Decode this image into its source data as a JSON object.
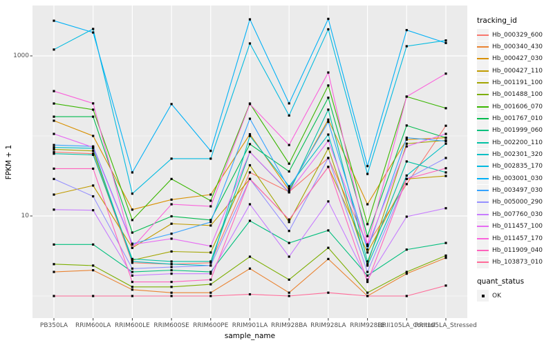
{
  "chart_data": {
    "type": "line",
    "title": "",
    "xlabel": "sample_name",
    "ylabel": "FPKM + 1",
    "y_scale": "log10",
    "y_ticks": [
      1000,
      10
    ],
    "y_minor_gridlines": [
      100,
      1
    ],
    "ylim": [
      0.55,
      4200
    ],
    "grid": true,
    "legend_position": "right",
    "legend_title": "tracking_id",
    "quant_legend": {
      "title": "quant_status",
      "items": [
        {
          "label": "OK",
          "marker": "black-square-point"
        }
      ]
    },
    "panel_bg": "#ebebeb",
    "grid_color": "#ffffff",
    "point_color": "#000000",
    "axis_text_color": "#4d4d4d",
    "categories": [
      "PB350LA",
      "RRIM600LA",
      "RRIM600LE",
      "RRIM600SE",
      "RRIM600PE",
      "RRIM901LA",
      "RRIM928BA",
      "RRIM928LA",
      "RRIM928LE",
      "RRII105LA_Control",
      "RRII105LA_Stressed"
    ],
    "series": [
      {
        "name": "Hb_000329_600",
        "color": "#F8766D",
        "values": [
          63,
          60,
          2.6,
          2.5,
          2.6,
          35,
          20,
          53,
          4.4,
          25,
          134
        ]
      },
      {
        "name": "Hb_000340_430",
        "color": "#EA8331",
        "values": [
          2.0,
          2.1,
          1.2,
          1.1,
          1.1,
          2.2,
          1.1,
          2.9,
          1.0,
          1.9,
          3.0
        ]
      },
      {
        "name": "Hb_000427_030",
        "color": "#D89000",
        "values": [
          155,
          100,
          12,
          16,
          18.5,
          105,
          21,
          160,
          14,
          90,
          95
        ]
      },
      {
        "name": "Hb_000427_110",
        "color": "#C09B00",
        "values": [
          18.5,
          24,
          4.0,
          8.0,
          7.6,
          29,
          9.0,
          41,
          3.5,
          29,
          31.6
        ]
      },
      {
        "name": "Hb_001191_100",
        "color": "#A3A500",
        "values": [
          68,
          65,
          2.8,
          3.6,
          3.5,
          43,
          8.4,
          70,
          2.5,
          80,
          88
        ]
      },
      {
        "name": "Hb_001488_100",
        "color": "#7CAE00",
        "values": [
          2.5,
          2.4,
          1.3,
          1.3,
          1.4,
          3.1,
          1.6,
          4.0,
          1.1,
          2.0,
          3.2
        ]
      },
      {
        "name": "Hb_001606_070",
        "color": "#39B600",
        "values": [
          254,
          213,
          8.9,
          29,
          15.5,
          254,
          45,
          427,
          7.9,
          310,
          222
        ]
      },
      {
        "name": "Hb_001767_010",
        "color": "#00BB4E",
        "values": [
          174,
          174,
          6.2,
          9.9,
          8.9,
          79,
          36,
          300,
          5.6,
          135,
          95
        ]
      },
      {
        "name": "Hb_001999_060",
        "color": "#00BF7D",
        "values": [
          4.4,
          4.4,
          2.0,
          2.1,
          2.0,
          8.7,
          4.6,
          6.6,
          1.8,
          3.8,
          4.6
        ]
      },
      {
        "name": "Hb_002200_110",
        "color": "#00C1A3",
        "values": [
          60,
          58,
          2.9,
          2.7,
          2.7,
          63,
          19.7,
          213,
          2.7,
          48,
          35
        ]
      },
      {
        "name": "Hb_002301_320",
        "color": "#00BFC4",
        "values": [
          72,
          70,
          2.7,
          2.5,
          2.4,
          100,
          23.5,
          104,
          2.4,
          32,
          80
        ]
      },
      {
        "name": "Hb_002835_170",
        "color": "#00BAE0",
        "values": [
          1200,
          2170,
          19,
          52,
          52,
          1430,
          180,
          2150,
          33.5,
          1320,
          1560
        ]
      },
      {
        "name": "Hb_003001_030",
        "color": "#00B0F6",
        "values": [
          2750,
          1960,
          35,
          250,
          65,
          2860,
          255,
          2900,
          42,
          2100,
          1450
        ]
      },
      {
        "name": "Hb_003497_030",
        "color": "#35A2FF",
        "values": [
          77,
          74,
          4.5,
          6.0,
          8.4,
          164,
          22,
          150,
          3.8,
          95,
          86
        ]
      },
      {
        "name": "Hb_005000_290",
        "color": "#9590FF",
        "values": [
          29,
          17.6,
          2.2,
          2.3,
          2.4,
          29,
          6.5,
          53,
          2.0,
          29,
          53
        ]
      },
      {
        "name": "Hb_007760_030",
        "color": "#C77CFF",
        "values": [
          12,
          11.8,
          1.8,
          1.9,
          1.9,
          14,
          3.1,
          15.2,
          1.6,
          9.8,
          12.5
        ]
      },
      {
        "name": "Hb_011457_100",
        "color": "#E76BF3",
        "values": [
          106,
          72,
          4.4,
          5.2,
          4.2,
          63,
          20,
          87,
          4.2,
          74,
          106
        ]
      },
      {
        "name": "Hb_011457_170",
        "color": "#FA62DB",
        "values": [
          363,
          255,
          4.0,
          14,
          13.2,
          250,
          77,
          620,
          4.4,
          310,
          600
        ]
      },
      {
        "name": "Hb_011909_040",
        "color": "#FF62BC",
        "values": [
          39,
          39,
          1.5,
          1.5,
          1.6,
          29,
          9.0,
          41,
          1.5,
          29,
          39.5
        ]
      },
      {
        "name": "Hb_103873_010",
        "color": "#FF6A98",
        "values": [
          1.0,
          1.0,
          1.0,
          1.0,
          1.0,
          1.05,
          1.0,
          1.1,
          1.0,
          1.0,
          1.35
        ]
      }
    ]
  }
}
